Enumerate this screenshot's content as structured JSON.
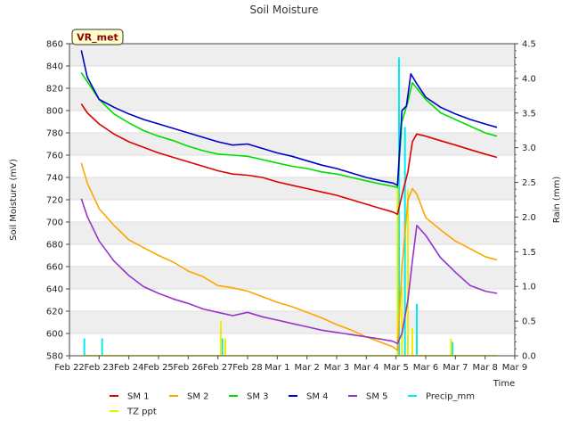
{
  "chart_data": {
    "type": "line",
    "title": "Soil Moisture",
    "badge": "VR_met",
    "xlabel": "Time",
    "ylabel": "Soil Moisture (mV)",
    "y2label": "Rain (mm)",
    "xlim": [
      0,
      15
    ],
    "ylim": [
      580,
      860
    ],
    "y2lim": [
      0,
      4.5
    ],
    "x_ticks": [
      {
        "x": 0,
        "label": "Feb 22"
      },
      {
        "x": 1,
        "label": "Feb 23"
      },
      {
        "x": 2,
        "label": "Feb 24"
      },
      {
        "x": 3,
        "label": "Feb 25"
      },
      {
        "x": 4,
        "label": "Feb 26"
      },
      {
        "x": 5,
        "label": "Feb 27"
      },
      {
        "x": 6,
        "label": "Feb 28"
      },
      {
        "x": 7,
        "label": "Mar 1"
      },
      {
        "x": 8,
        "label": "Mar 2"
      },
      {
        "x": 9,
        "label": "Mar 3"
      },
      {
        "x": 10,
        "label": "Mar 4"
      },
      {
        "x": 11,
        "label": "Mar 5"
      },
      {
        "x": 12,
        "label": "Mar 6"
      },
      {
        "x": 13,
        "label": "Mar 7"
      },
      {
        "x": 14,
        "label": "Mar 8"
      },
      {
        "x": 15,
        "label": "Mar 9"
      }
    ],
    "y_ticks": [
      580,
      600,
      620,
      640,
      660,
      680,
      700,
      720,
      740,
      760,
      780,
      800,
      820,
      840,
      860
    ],
    "y_tick_labels": [
      "580",
      "600",
      "620",
      "640",
      "660",
      "680",
      "700",
      "720",
      "740",
      "760",
      "780",
      "800",
      "820",
      "840",
      "860"
    ],
    "y2_ticks": [
      0,
      0.5,
      1,
      1.5,
      2,
      2.5,
      3,
      3.5,
      4,
      4.5
    ],
    "y2_tick_labels": [
      "0.0",
      "0.5",
      "1.0",
      "1.5",
      "2.0",
      "2.5",
      "3.0",
      "3.5",
      "4.0",
      "4.5"
    ],
    "series": [
      {
        "name": "SM 1",
        "color": "#dd0000",
        "axis": "left",
        "points": [
          [
            0.4,
            806
          ],
          [
            0.6,
            798
          ],
          [
            1,
            788
          ],
          [
            1.5,
            779
          ],
          [
            2,
            772
          ],
          [
            2.5,
            767
          ],
          [
            3,
            762
          ],
          [
            3.5,
            758
          ],
          [
            4,
            754
          ],
          [
            4.5,
            750
          ],
          [
            5,
            746
          ],
          [
            5.5,
            743
          ],
          [
            6,
            742
          ],
          [
            6.5,
            740
          ],
          [
            7,
            736
          ],
          [
            7.5,
            733
          ],
          [
            8,
            730
          ],
          [
            8.5,
            727
          ],
          [
            9,
            724
          ],
          [
            9.5,
            720
          ],
          [
            10,
            716
          ],
          [
            10.5,
            712
          ],
          [
            10.9,
            709
          ],
          [
            11.05,
            707
          ],
          [
            11.2,
            724
          ],
          [
            11.4,
            745
          ],
          [
            11.55,
            772
          ],
          [
            11.7,
            779
          ],
          [
            12,
            777
          ],
          [
            12.5,
            773
          ],
          [
            13,
            769
          ],
          [
            13.5,
            765
          ],
          [
            14,
            761
          ],
          [
            14.4,
            758
          ]
        ]
      },
      {
        "name": "SM 2",
        "color": "#ffa500",
        "axis": "left",
        "points": [
          [
            0.4,
            753
          ],
          [
            0.6,
            735
          ],
          [
            1,
            712
          ],
          [
            1.5,
            697
          ],
          [
            2,
            684
          ],
          [
            2.5,
            677
          ],
          [
            3,
            670
          ],
          [
            3.5,
            664
          ],
          [
            4,
            656
          ],
          [
            4.5,
            651
          ],
          [
            5,
            643
          ],
          [
            5.5,
            641
          ],
          [
            6,
            638
          ],
          [
            6.5,
            633
          ],
          [
            7,
            628
          ],
          [
            7.5,
            624
          ],
          [
            8,
            619
          ],
          [
            8.5,
            614
          ],
          [
            9,
            608
          ],
          [
            9.5,
            603
          ],
          [
            10,
            597
          ],
          [
            10.5,
            592
          ],
          [
            10.9,
            588
          ],
          [
            11.05,
            585
          ],
          [
            11.2,
            660
          ],
          [
            11.4,
            720
          ],
          [
            11.55,
            730
          ],
          [
            11.7,
            725
          ],
          [
            12,
            704
          ],
          [
            12.5,
            693
          ],
          [
            13,
            683
          ],
          [
            13.5,
            676
          ],
          [
            14,
            669
          ],
          [
            14.4,
            666
          ]
        ]
      },
      {
        "name": "SM 3",
        "color": "#00dd00",
        "axis": "left",
        "points": [
          [
            0.4,
            834
          ],
          [
            0.6,
            826
          ],
          [
            1,
            810
          ],
          [
            1.5,
            797
          ],
          [
            2,
            789
          ],
          [
            2.5,
            782
          ],
          [
            3,
            777
          ],
          [
            3.5,
            773
          ],
          [
            4,
            768
          ],
          [
            4.5,
            764
          ],
          [
            5,
            761
          ],
          [
            5.5,
            760
          ],
          [
            6,
            759
          ],
          [
            6.5,
            756
          ],
          [
            7,
            753
          ],
          [
            7.5,
            750
          ],
          [
            8,
            748
          ],
          [
            8.5,
            745
          ],
          [
            9,
            743
          ],
          [
            9.5,
            740
          ],
          [
            10,
            737
          ],
          [
            10.5,
            734
          ],
          [
            10.9,
            732
          ],
          [
            11.05,
            731
          ],
          [
            11.2,
            790
          ],
          [
            11.4,
            808
          ],
          [
            11.55,
            825
          ],
          [
            11.7,
            820
          ],
          [
            12,
            810
          ],
          [
            12.5,
            798
          ],
          [
            13,
            792
          ],
          [
            13.5,
            786
          ],
          [
            14,
            780
          ],
          [
            14.4,
            777
          ]
        ]
      },
      {
        "name": "SM 4",
        "color": "#0000cc",
        "axis": "left",
        "points": [
          [
            0.4,
            854
          ],
          [
            0.6,
            830
          ],
          [
            1,
            810
          ],
          [
            1.5,
            803
          ],
          [
            2,
            797
          ],
          [
            2.5,
            792
          ],
          [
            3,
            788
          ],
          [
            3.5,
            784
          ],
          [
            4,
            780
          ],
          [
            4.5,
            776
          ],
          [
            5,
            772
          ],
          [
            5.5,
            769
          ],
          [
            6,
            770
          ],
          [
            6.5,
            766
          ],
          [
            7,
            762
          ],
          [
            7.5,
            759
          ],
          [
            8,
            755
          ],
          [
            8.5,
            751
          ],
          [
            9,
            748
          ],
          [
            9.5,
            744
          ],
          [
            10,
            740
          ],
          [
            10.5,
            737
          ],
          [
            10.9,
            735
          ],
          [
            11.05,
            733
          ],
          [
            11.2,
            800
          ],
          [
            11.35,
            804
          ],
          [
            11.5,
            833
          ],
          [
            11.7,
            824
          ],
          [
            12,
            812
          ],
          [
            12.5,
            803
          ],
          [
            13,
            797
          ],
          [
            13.5,
            792
          ],
          [
            14,
            788
          ],
          [
            14.4,
            785
          ]
        ]
      },
      {
        "name": "SM 5",
        "color": "#9932cc",
        "axis": "left",
        "points": [
          [
            0.4,
            721
          ],
          [
            0.6,
            705
          ],
          [
            1,
            683
          ],
          [
            1.5,
            665
          ],
          [
            2,
            652
          ],
          [
            2.5,
            642
          ],
          [
            3,
            636
          ],
          [
            3.5,
            631
          ],
          [
            4,
            627
          ],
          [
            4.5,
            622
          ],
          [
            5,
            619
          ],
          [
            5.5,
            616
          ],
          [
            6,
            619
          ],
          [
            6.5,
            615
          ],
          [
            7,
            612
          ],
          [
            7.5,
            609
          ],
          [
            8,
            606
          ],
          [
            8.5,
            603
          ],
          [
            9,
            601
          ],
          [
            9.5,
            599
          ],
          [
            10,
            597
          ],
          [
            10.5,
            595
          ],
          [
            10.9,
            593
          ],
          [
            11.05,
            591
          ],
          [
            11.2,
            600
          ],
          [
            11.4,
            630
          ],
          [
            11.55,
            665
          ],
          [
            11.7,
            697
          ],
          [
            12,
            688
          ],
          [
            12.5,
            668
          ],
          [
            13,
            655
          ],
          [
            13.5,
            643
          ],
          [
            14,
            638
          ],
          [
            14.4,
            636
          ]
        ]
      },
      {
        "name": "Precip_mm",
        "color": "#00eeee",
        "axis": "right",
        "style": "bars",
        "points": [
          [
            0.5,
            0.25
          ],
          [
            1.1,
            0.25
          ],
          [
            5.15,
            0.25
          ],
          [
            11.1,
            4.3
          ],
          [
            11.3,
            3.3
          ],
          [
            11.7,
            0.75
          ],
          [
            12.9,
            0.2
          ]
        ]
      },
      {
        "name": "TZ ppt",
        "color": "#eeee00",
        "axis": "right",
        "style": "bars",
        "points": [
          [
            5.1,
            0.5
          ],
          [
            5.25,
            0.25
          ],
          [
            11.05,
            2.5
          ],
          [
            11.2,
            1.0
          ],
          [
            11.4,
            2.4
          ],
          [
            11.55,
            0.4
          ],
          [
            12.85,
            0.25
          ]
        ]
      }
    ],
    "legend_position": "bottom-center"
  }
}
